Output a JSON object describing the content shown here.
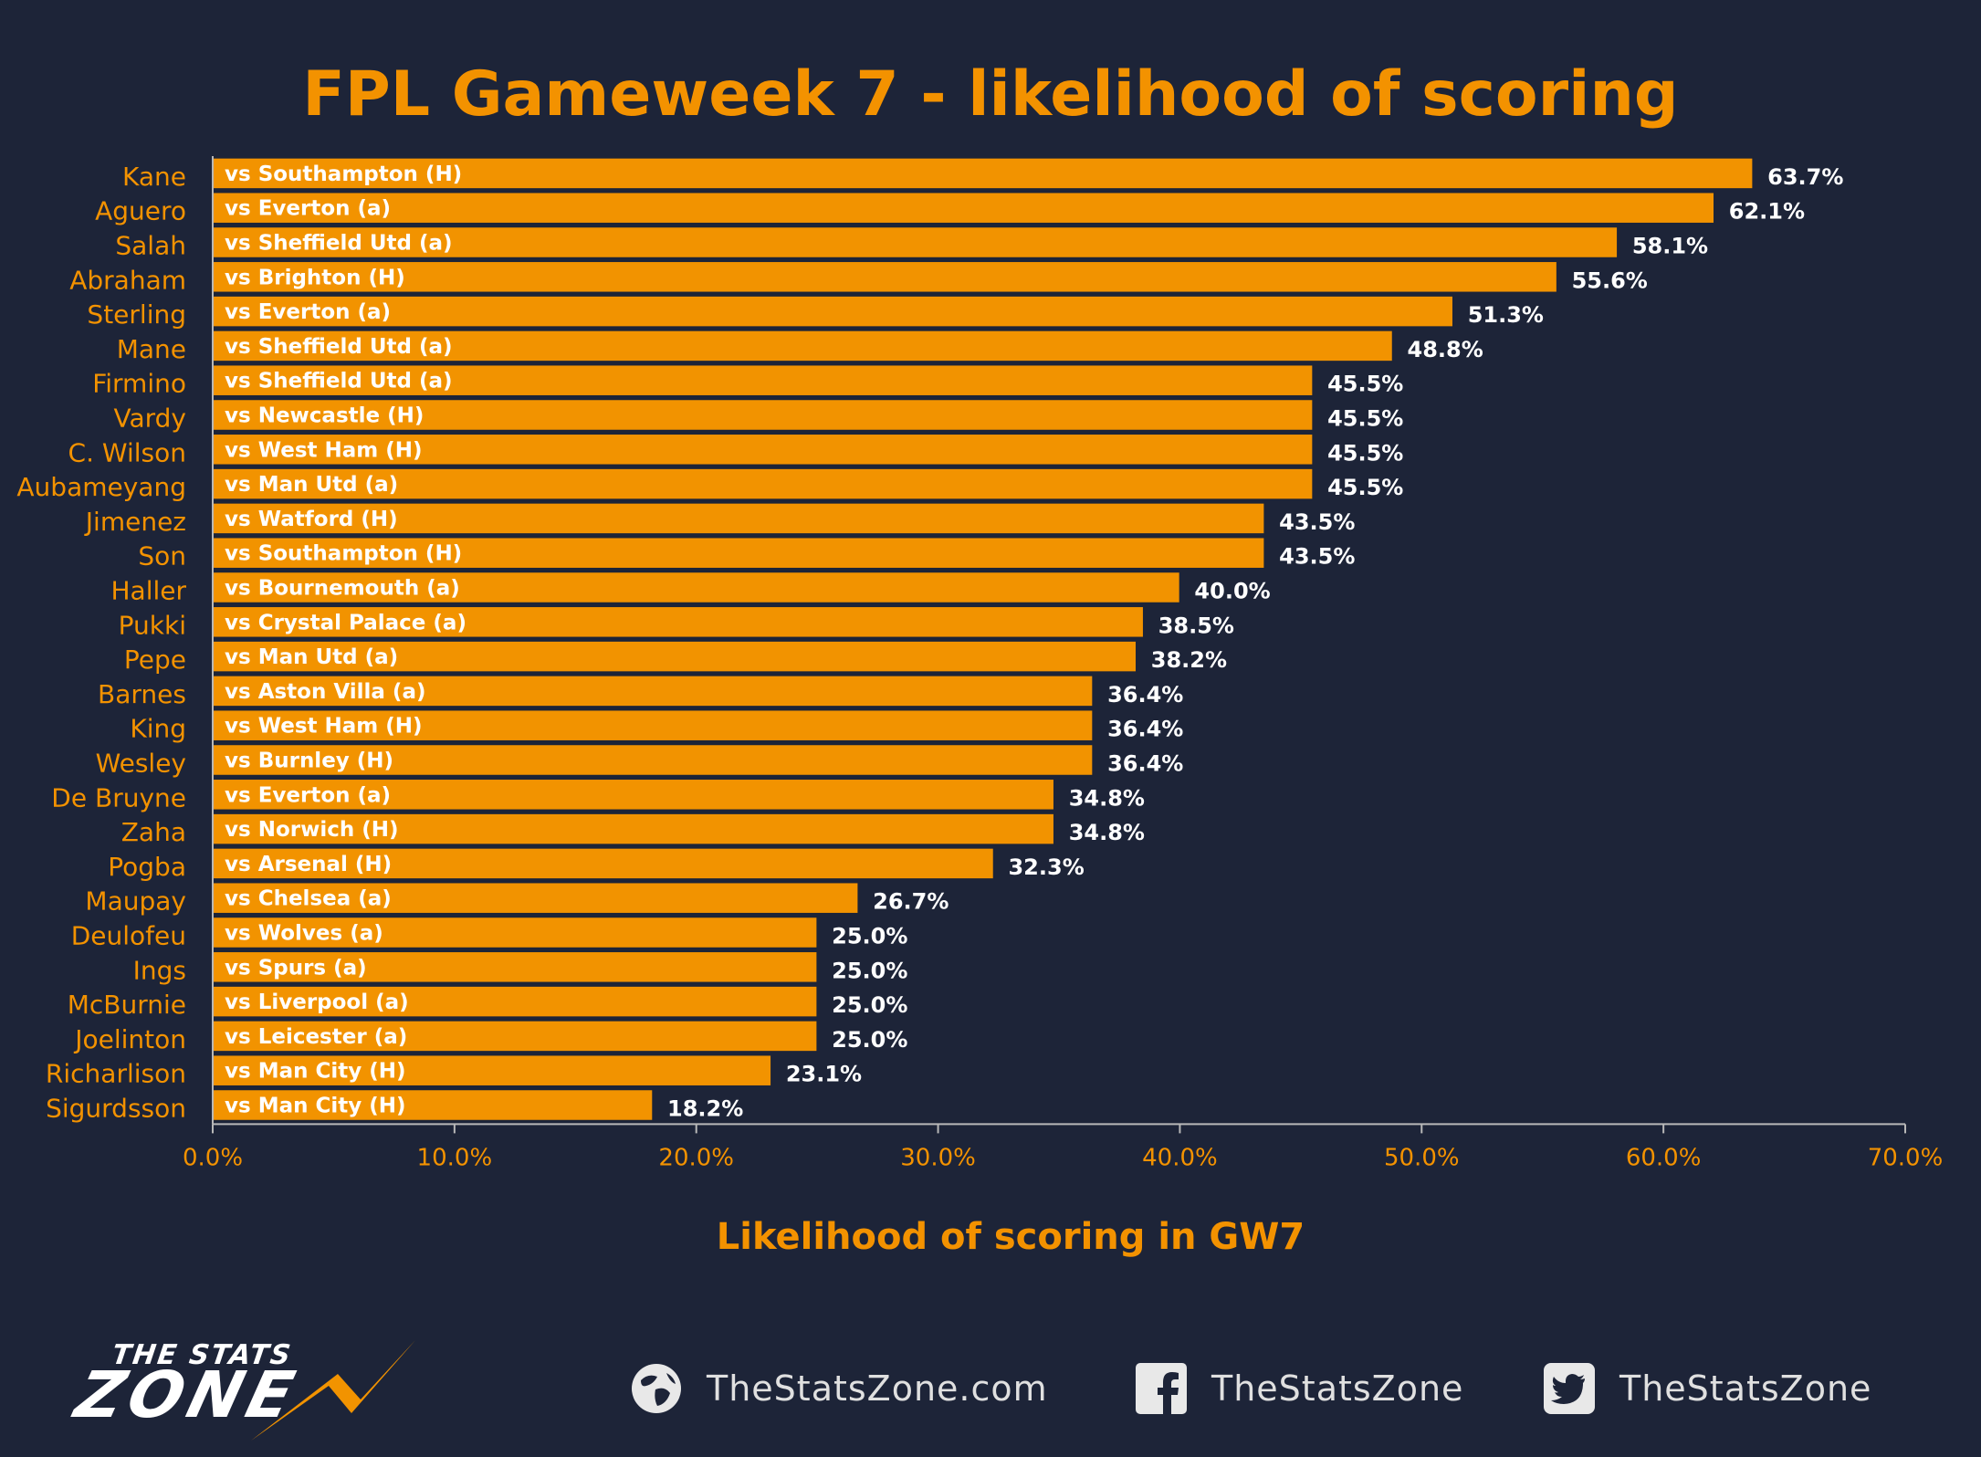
{
  "chart_data": {
    "type": "bar",
    "orientation": "horizontal",
    "title": "FPL Gameweek 7 - likelihood of scoring",
    "xlabel": "Likelihood of scoring in GW7",
    "ylabel": "",
    "xlim": [
      0,
      70
    ],
    "x_ticks": [
      "0.0%",
      "10.0%",
      "20.0%",
      "30.0%",
      "40.0%",
      "50.0%",
      "60.0%",
      "70.0%"
    ],
    "categories": [
      "Kane",
      "Aguero",
      "Salah",
      "Abraham",
      "Sterling",
      "Mane",
      "Firmino",
      "Vardy",
      "C. Wilson",
      "Aubameyang",
      "Jimenez",
      "Son",
      "Haller",
      "Pukki",
      "Pepe",
      "Barnes",
      "King",
      "Wesley",
      "De Bruyne",
      "Zaha",
      "Pogba",
      "Maupay",
      "Deulofeu",
      "Ings",
      "McBurnie",
      "Joelinton",
      "Richarlison",
      "Sigurdsson"
    ],
    "values": [
      63.7,
      62.1,
      58.1,
      55.6,
      51.3,
      48.8,
      45.5,
      45.5,
      45.5,
      45.5,
      43.5,
      43.5,
      40.0,
      38.5,
      38.2,
      36.4,
      36.4,
      36.4,
      34.8,
      34.8,
      32.3,
      26.7,
      25.0,
      25.0,
      25.0,
      25.0,
      23.1,
      18.2
    ],
    "value_labels": [
      "63.7%",
      "62.1%",
      "58.1%",
      "55.6%",
      "51.3%",
      "48.8%",
      "45.5%",
      "45.5%",
      "45.5%",
      "45.5%",
      "43.5%",
      "43.5%",
      "40.0%",
      "38.5%",
      "38.2%",
      "36.4%",
      "36.4%",
      "36.4%",
      "34.8%",
      "34.8%",
      "32.3%",
      "26.7%",
      "25.0%",
      "25.0%",
      "25.0%",
      "25.0%",
      "23.1%",
      "18.2%"
    ],
    "bar_labels": [
      "vs Southampton (H)",
      "vs Everton (a)",
      "vs Sheffield Utd (a)",
      "vs Brighton (H)",
      "vs Everton (a)",
      "vs Sheffield Utd (a)",
      "vs Sheffield Utd (a)",
      "vs Newcastle (H)",
      "vs West Ham (H)",
      "vs Man Utd (a)",
      "vs Watford (H)",
      "vs Southampton (H)",
      "vs Bournemouth (a)",
      "vs Crystal Palace (a)",
      "vs Man Utd (a)",
      "vs Aston Villa (a)",
      "vs West Ham (H)",
      "vs Burnley (H)",
      "vs Everton (a)",
      "vs Norwich (H)",
      "vs Arsenal (H)",
      "vs Chelsea (a)",
      "vs Wolves (a)",
      "vs Spurs (a)",
      "vs Liverpool (a)",
      "vs Leicester (a)",
      "vs Man City (H)",
      "vs Man City (H)"
    ],
    "legend": "none",
    "grid": false,
    "colors": {
      "background": "#1d2438",
      "bar": "#f29300",
      "bar_outline": "#1d2438",
      "accent": "#f39200",
      "value_label": "#ffffff",
      "bar_label": "#ffffff",
      "axis": "#b8b8b8"
    }
  },
  "footer": {
    "logo_line1": "THE STATS",
    "logo_line2": "ZONE",
    "website": "TheStatsZone.com",
    "facebook": "TheStatsZone",
    "twitter": "TheStatsZone",
    "icons": [
      "globe-icon",
      "facebook-icon",
      "twitter-icon"
    ]
  }
}
